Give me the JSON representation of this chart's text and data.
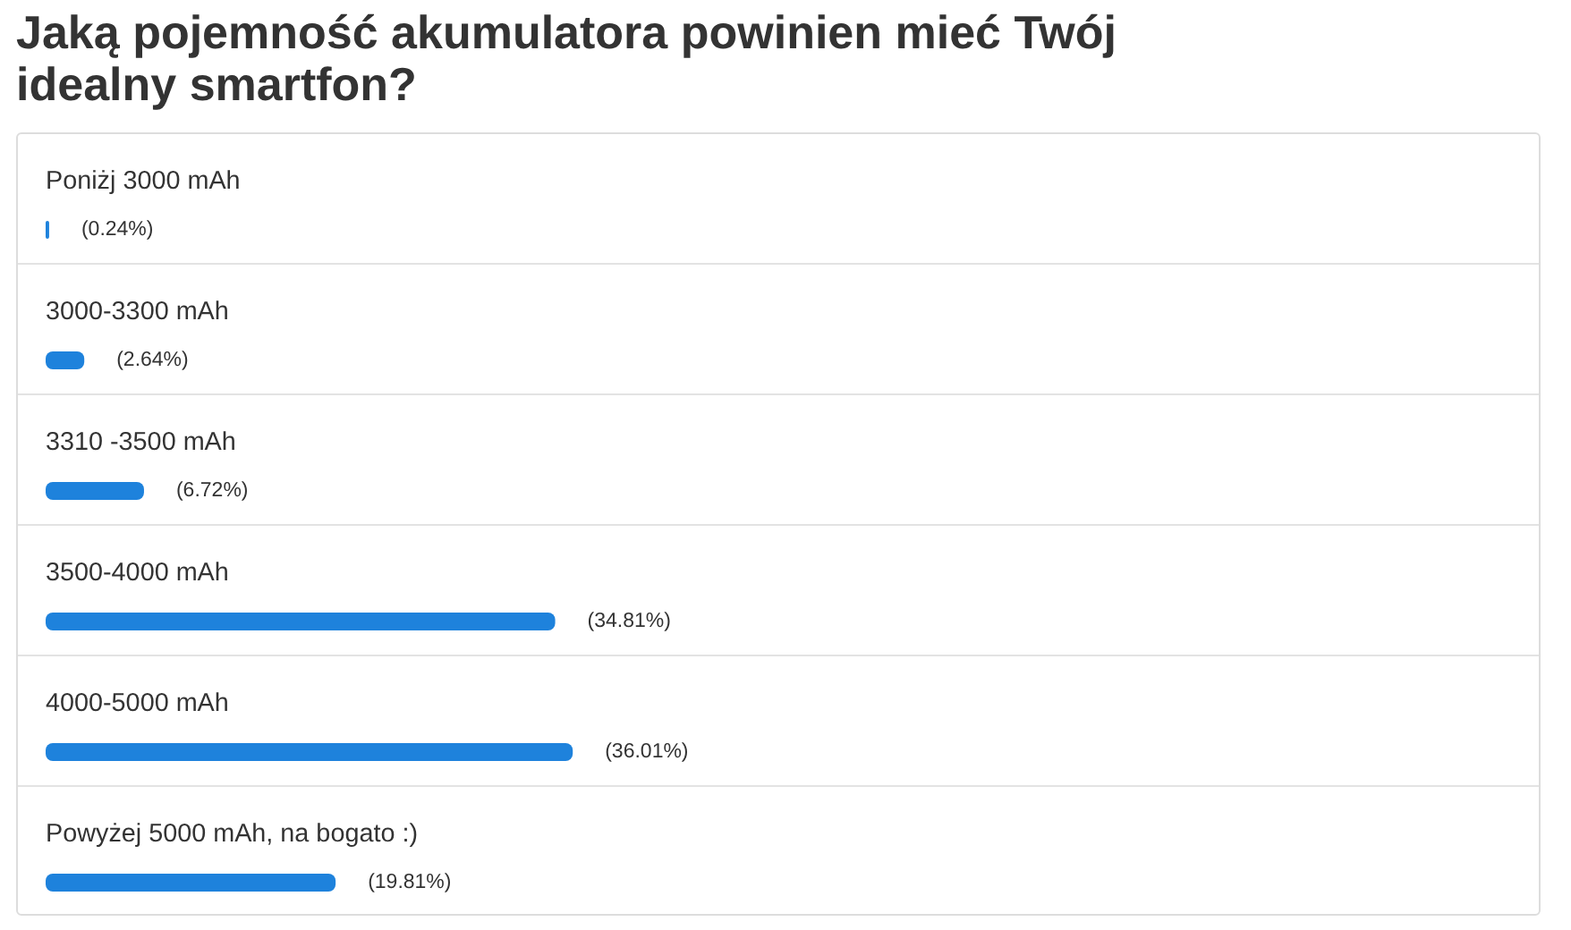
{
  "chart_data": {
    "type": "bar",
    "orientation": "horizontal",
    "title": "Jaką pojemność akumulatora powinien mieć Twój idealny smartfon?",
    "categories": [
      "Poniżj 3000 mAh",
      "3000-3300 mAh",
      "3310 -3500 mAh",
      "3500-4000 mAh",
      "4000-5000 mAh",
      "Powyżej 5000 mAh, na bogato :)"
    ],
    "values": [
      0.24,
      2.64,
      6.72,
      34.81,
      36.01,
      19.81
    ],
    "value_labels": [
      "(0.24%)",
      "(2.64%)",
      "(6.72%)",
      "(34.81%)",
      "(36.01%)",
      "(19.81%)"
    ],
    "color": "#1e82dc",
    "tick_labels": "y"
  }
}
